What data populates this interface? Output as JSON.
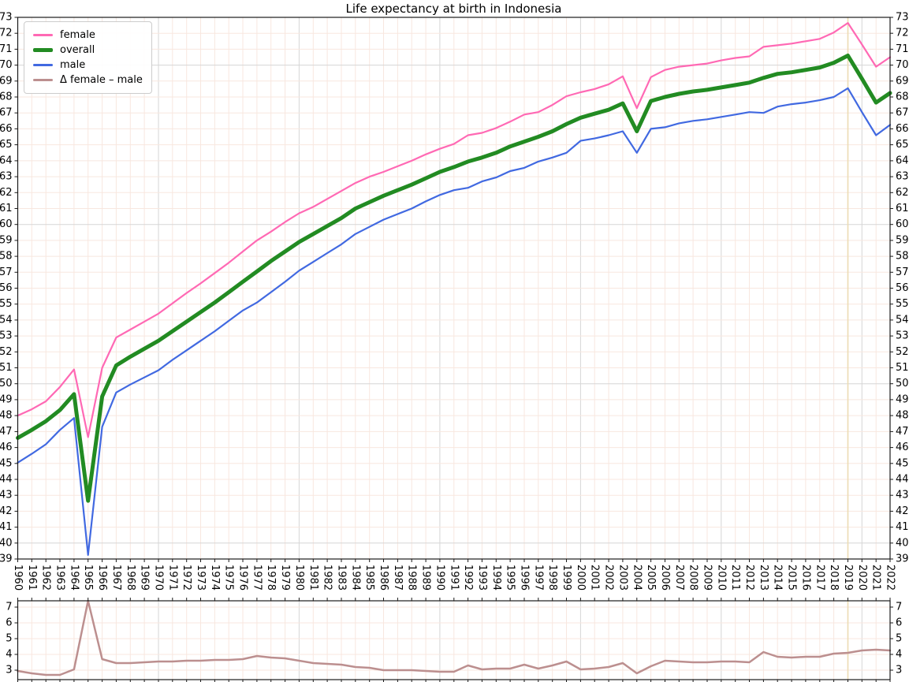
{
  "title": "Life expectancy at birth in Indonesia",
  "colors": {
    "female": "#FF69B4",
    "overall": "#228B22",
    "male": "#4169E1",
    "delta": "#BC8F8F",
    "grid_minor": "#f8e7df",
    "grid_major": "#d6d6d6",
    "event_line": "#ecdcb3",
    "frame": "#1a1a1a",
    "text": "#000000"
  },
  "legend": {
    "items": [
      {
        "label": "female",
        "color": "#FF69B4",
        "line_width": 3
      },
      {
        "label": "overall",
        "color": "#228B22",
        "line_width": 5
      },
      {
        "label": "male",
        "color": "#4169E1",
        "line_width": 3
      },
      {
        "label": "Δ female – male",
        "color": "#BC8F8F",
        "line_width": 3
      }
    ]
  },
  "chart_data": [
    {
      "type": "line",
      "title": "Life expectancy at birth in Indonesia",
      "xlabel": "",
      "ylabel": "",
      "ylim": [
        39,
        73
      ],
      "grid": true,
      "legend_position": "upper left",
      "vline_year": 2019,
      "x": [
        1960,
        1961,
        1962,
        1963,
        1964,
        1965,
        1966,
        1967,
        1968,
        1969,
        1970,
        1971,
        1972,
        1973,
        1974,
        1975,
        1976,
        1977,
        1978,
        1979,
        1980,
        1981,
        1982,
        1983,
        1984,
        1985,
        1986,
        1987,
        1988,
        1989,
        1990,
        1991,
        1992,
        1993,
        1994,
        1995,
        1996,
        1997,
        1998,
        1999,
        2000,
        2001,
        2002,
        2003,
        2004,
        2005,
        2006,
        2007,
        2008,
        2009,
        2010,
        2011,
        2012,
        2013,
        2014,
        2015,
        2016,
        2017,
        2018,
        2019,
        2020,
        2021,
        2022
      ],
      "yticks": [
        39,
        40,
        41,
        42,
        43,
        44,
        45,
        46,
        47,
        48,
        49,
        50,
        51,
        52,
        53,
        54,
        55,
        56,
        57,
        58,
        59,
        60,
        61,
        62,
        63,
        64,
        65,
        66,
        67,
        68,
        69,
        70,
        71,
        72,
        73
      ],
      "series": [
        {
          "name": "female",
          "color": "#FF69B4",
          "width": 2.2,
          "values": [
            48.0,
            48.4,
            48.9,
            49.8,
            50.9,
            46.65,
            51.0,
            52.9,
            53.4,
            53.9,
            54.4,
            55.05,
            55.7,
            56.3,
            56.95,
            57.6,
            58.3,
            59.0,
            59.55,
            60.15,
            60.7,
            61.1,
            61.6,
            62.1,
            62.6,
            63.0,
            63.3,
            63.65,
            64.0,
            64.4,
            64.75,
            65.05,
            65.6,
            65.75,
            66.05,
            66.45,
            66.9,
            67.05,
            67.5,
            68.05,
            68.3,
            68.5,
            68.8,
            69.3,
            67.3,
            69.25,
            69.7,
            69.9,
            70.0,
            70.1,
            70.3,
            70.45,
            70.55,
            71.15,
            71.25,
            71.35,
            71.5,
            71.65,
            72.05,
            72.65,
            71.3,
            69.9,
            70.5
          ]
        },
        {
          "name": "overall",
          "color": "#228B22",
          "width": 5,
          "values": [
            46.6,
            47.1,
            47.65,
            48.35,
            49.35,
            42.65,
            49.2,
            51.15,
            51.7,
            52.2,
            52.7,
            53.3,
            53.9,
            54.5,
            55.1,
            55.75,
            56.4,
            57.05,
            57.7,
            58.3,
            58.9,
            59.4,
            59.9,
            60.4,
            61.0,
            61.4,
            61.8,
            62.15,
            62.5,
            62.9,
            63.3,
            63.6,
            63.95,
            64.2,
            64.5,
            64.9,
            65.2,
            65.5,
            65.85,
            66.3,
            66.7,
            66.95,
            67.2,
            67.6,
            65.85,
            67.75,
            68.0,
            68.2,
            68.35,
            68.45,
            68.6,
            68.75,
            68.9,
            69.2,
            69.45,
            69.55,
            69.7,
            69.85,
            70.15,
            70.6,
            69.15,
            67.65,
            68.25
          ]
        },
        {
          "name": "male",
          "color": "#4169E1",
          "width": 2.2,
          "values": [
            45.05,
            45.6,
            46.2,
            47.1,
            47.85,
            39.25,
            47.3,
            49.45,
            49.95,
            50.4,
            50.85,
            51.5,
            52.1,
            52.7,
            53.3,
            53.95,
            54.6,
            55.1,
            55.75,
            56.4,
            57.1,
            57.65,
            58.2,
            58.75,
            59.4,
            59.85,
            60.3,
            60.65,
            61.0,
            61.45,
            61.85,
            62.15,
            62.3,
            62.7,
            62.95,
            63.35,
            63.55,
            63.95,
            64.2,
            64.5,
            65.25,
            65.4,
            65.6,
            65.85,
            64.5,
            66.0,
            66.1,
            66.35,
            66.5,
            66.6,
            66.75,
            66.9,
            67.05,
            67.0,
            67.4,
            67.55,
            67.65,
            67.8,
            68.0,
            68.55,
            67.05,
            65.6,
            66.25
          ]
        }
      ]
    },
    {
      "type": "line",
      "title": "",
      "xlabel": "",
      "ylabel": "",
      "ylim": [
        2.4,
        7.4
      ],
      "grid": true,
      "vline_year": 2019,
      "x": [
        1960,
        1961,
        1962,
        1963,
        1964,
        1965,
        1966,
        1967,
        1968,
        1969,
        1970,
        1971,
        1972,
        1973,
        1974,
        1975,
        1976,
        1977,
        1978,
        1979,
        1980,
        1981,
        1982,
        1983,
        1984,
        1985,
        1986,
        1987,
        1988,
        1989,
        1990,
        1991,
        1992,
        1993,
        1994,
        1995,
        1996,
        1997,
        1998,
        1999,
        2000,
        2001,
        2002,
        2003,
        2004,
        2005,
        2006,
        2007,
        2008,
        2009,
        2010,
        2011,
        2012,
        2013,
        2014,
        2015,
        2016,
        2017,
        2018,
        2019,
        2020,
        2021,
        2022
      ],
      "yticks": [
        3,
        4,
        5,
        6,
        7
      ],
      "series": [
        {
          "name": "delta-female-male",
          "color": "#BC8F8F",
          "width": 2.5,
          "values": [
            2.95,
            2.8,
            2.7,
            2.7,
            3.05,
            7.4,
            3.7,
            3.45,
            3.45,
            3.5,
            3.55,
            3.55,
            3.6,
            3.6,
            3.65,
            3.65,
            3.7,
            3.9,
            3.8,
            3.75,
            3.6,
            3.45,
            3.4,
            3.35,
            3.2,
            3.15,
            3.0,
            3.0,
            3.0,
            2.95,
            2.9,
            2.9,
            3.3,
            3.05,
            3.1,
            3.1,
            3.35,
            3.1,
            3.3,
            3.55,
            3.05,
            3.1,
            3.2,
            3.45,
            2.8,
            3.25,
            3.6,
            3.55,
            3.5,
            3.5,
            3.55,
            3.55,
            3.5,
            4.15,
            3.85,
            3.8,
            3.85,
            3.85,
            4.05,
            4.1,
            4.25,
            4.3,
            4.25
          ]
        }
      ]
    }
  ]
}
